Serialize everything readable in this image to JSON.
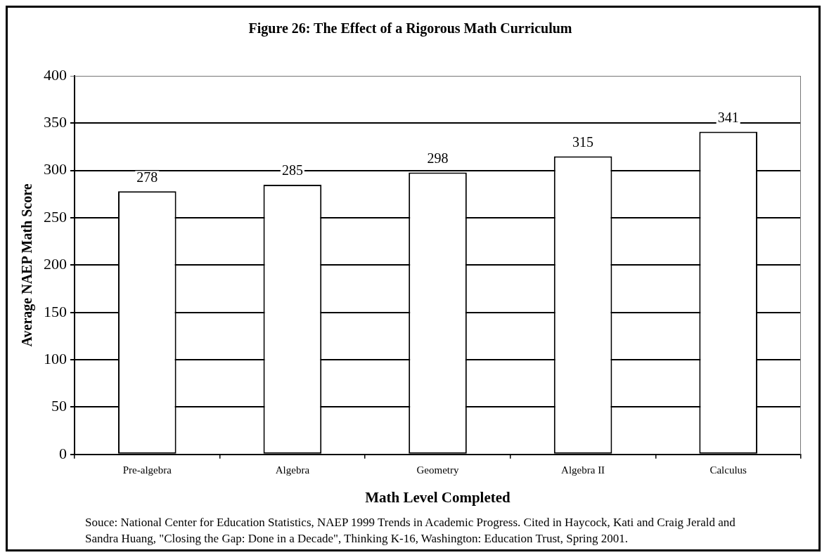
{
  "chart_data": {
    "type": "bar",
    "title": "Figure 26: The Effect of a Rigorous Math Curriculum",
    "xlabel": "Math Level Completed",
    "ylabel": "Average NAEP Math Score",
    "categories": [
      "Pre-algebra",
      "Algebra",
      "Geometry",
      "Algebra II",
      "Calculus"
    ],
    "values": [
      278,
      285,
      298,
      315,
      341
    ],
    "color": "#ffffff",
    "ylim": [
      0,
      400
    ],
    "yticks": [
      0,
      50,
      100,
      150,
      200,
      250,
      300,
      350,
      400
    ],
    "grid": "y",
    "data_labels": true,
    "annotations": [
      "Souce: National Center for Education Statistics, NAEP 1999 Trends in Academic Progress. Cited in Haycock, Kati and Craig Jerald and Sandra Huang, \"Closing the Gap: Done in a Decade\", Thinking K-16, Washington: Education Trust, Spring 2001."
    ]
  }
}
